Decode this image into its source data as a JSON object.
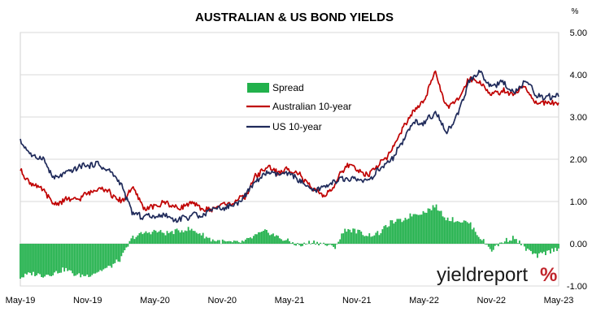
{
  "chart_data": {
    "type": "line",
    "title": "AUSTRALIAN & US BOND YIELDS",
    "y_unit": "%",
    "ylim": [
      -1.0,
      5.0
    ],
    "y_ticks": [
      "5.00",
      "4.00",
      "3.00",
      "2.00",
      "1.00",
      "0.00",
      "-1.00"
    ],
    "y_tick_values": [
      5,
      4,
      3,
      2,
      1,
      0,
      -1
    ],
    "x_ticks": [
      "May-19",
      "Nov-19",
      "May-20",
      "Nov-20",
      "May-21",
      "Nov-21",
      "May-22",
      "Nov-22",
      "May-23"
    ],
    "x_range": [
      "May-19",
      "May-23"
    ],
    "grid": "horizontal",
    "legend_position": "center-left",
    "legend": [
      {
        "key": "spread",
        "label": "Spread"
      },
      {
        "key": "au",
        "label": "Australian 10-year"
      },
      {
        "key": "us",
        "label": "US 10-year"
      }
    ],
    "series": [
      {
        "name": "Spread",
        "kind": "column",
        "color": "#22b14c",
        "points": [
          [
            "May-19",
            -0.8
          ],
          [
            "Jun-19",
            -0.7
          ],
          [
            "Jul-19",
            -0.75
          ],
          [
            "Aug-19",
            -0.7
          ],
          [
            "Sep-19",
            -0.6
          ],
          [
            "Oct-19",
            -0.75
          ],
          [
            "Nov-19",
            -0.75
          ],
          [
            "Dec-19",
            -0.65
          ],
          [
            "Jan-20",
            -0.55
          ],
          [
            "Feb-20",
            -0.35
          ],
          [
            "Mar-20",
            0.15
          ],
          [
            "Apr-20",
            0.25
          ],
          [
            "May-20",
            0.3
          ],
          [
            "Jun-20",
            0.25
          ],
          [
            "Jul-20",
            0.3
          ],
          [
            "Aug-20",
            0.35
          ],
          [
            "Sep-20",
            0.25
          ],
          [
            "Oct-20",
            0.1
          ],
          [
            "Nov-20",
            0.05
          ],
          [
            "Dec-20",
            0.02
          ],
          [
            "Jan-21",
            0.05
          ],
          [
            "Feb-21",
            0.2
          ],
          [
            "Mar-21",
            0.3
          ],
          [
            "Apr-21",
            0.15
          ],
          [
            "May-21",
            0.05
          ],
          [
            "Jun-21",
            -0.05
          ],
          [
            "Jul-21",
            0.05
          ],
          [
            "Aug-21",
            0.0
          ],
          [
            "Sep-21",
            -0.1
          ],
          [
            "Oct-21",
            0.35
          ],
          [
            "Nov-21",
            0.3
          ],
          [
            "Dec-21",
            0.2
          ],
          [
            "Jan-22",
            0.25
          ],
          [
            "Feb-22",
            0.5
          ],
          [
            "Mar-22",
            0.55
          ],
          [
            "Apr-22",
            0.7
          ],
          [
            "May-22",
            0.75
          ],
          [
            "Jun-22",
            0.9
          ],
          [
            "Jul-22",
            0.6
          ],
          [
            "Aug-22",
            0.55
          ],
          [
            "Sep-22",
            0.5
          ],
          [
            "Oct-22",
            0.15
          ],
          [
            "Nov-22",
            -0.15
          ],
          [
            "Dec-22",
            0.05
          ],
          [
            "Jan-23",
            0.15
          ],
          [
            "Feb-23",
            -0.1
          ],
          [
            "Mar-23",
            -0.3
          ],
          [
            "Apr-23",
            -0.2
          ],
          [
            "May-23",
            -0.1
          ]
        ]
      },
      {
        "name": "Australian 10-year",
        "kind": "line",
        "color": "#c00000",
        "points": [
          [
            "May-19",
            1.75
          ],
          [
            "Jun-19",
            1.4
          ],
          [
            "Jul-19",
            1.3
          ],
          [
            "Aug-19",
            0.95
          ],
          [
            "Sep-19",
            1.05
          ],
          [
            "Oct-19",
            1.05
          ],
          [
            "Nov-19",
            1.2
          ],
          [
            "Dec-19",
            1.35
          ],
          [
            "Jan-20",
            1.2
          ],
          [
            "Feb-20",
            1.0
          ],
          [
            "Mar-20",
            1.3
          ],
          [
            "Apr-20",
            0.85
          ],
          [
            "May-20",
            0.9
          ],
          [
            "Jun-20",
            0.95
          ],
          [
            "Jul-20",
            0.85
          ],
          [
            "Aug-20",
            0.95
          ],
          [
            "Sep-20",
            0.85
          ],
          [
            "Oct-20",
            0.8
          ],
          [
            "Nov-20",
            0.9
          ],
          [
            "Dec-20",
            1.0
          ],
          [
            "Jan-21",
            1.1
          ],
          [
            "Feb-21",
            1.6
          ],
          [
            "Mar-21",
            1.8
          ],
          [
            "Apr-21",
            1.7
          ],
          [
            "May-21",
            1.75
          ],
          [
            "Jun-21",
            1.6
          ],
          [
            "Jul-21",
            1.3
          ],
          [
            "Aug-21",
            1.15
          ],
          [
            "Sep-21",
            1.35
          ],
          [
            "Oct-21",
            1.85
          ],
          [
            "Nov-21",
            1.75
          ],
          [
            "Dec-21",
            1.65
          ],
          [
            "Jan-22",
            1.9
          ],
          [
            "Feb-22",
            2.15
          ],
          [
            "Mar-22",
            2.65
          ],
          [
            "Apr-22",
            3.1
          ],
          [
            "May-22",
            3.35
          ],
          [
            "Jun-22",
            4.1
          ],
          [
            "Jul-22",
            3.25
          ],
          [
            "Aug-22",
            3.4
          ],
          [
            "Sep-22",
            3.9
          ],
          [
            "Oct-22",
            3.85
          ],
          [
            "Nov-22",
            3.5
          ],
          [
            "Dec-22",
            3.6
          ],
          [
            "Jan-23",
            3.55
          ],
          [
            "Feb-23",
            3.75
          ],
          [
            "Mar-23",
            3.3
          ],
          [
            "Apr-23",
            3.35
          ],
          [
            "May-23",
            3.35
          ]
        ]
      },
      {
        "name": "US 10-year",
        "kind": "line",
        "color": "#1f2a5a",
        "points": [
          [
            "May-19",
            2.45
          ],
          [
            "Jun-19",
            2.05
          ],
          [
            "Jul-19",
            2.05
          ],
          [
            "Aug-19",
            1.55
          ],
          [
            "Sep-19",
            1.7
          ],
          [
            "Oct-19",
            1.8
          ],
          [
            "Nov-19",
            1.85
          ],
          [
            "Dec-19",
            1.9
          ],
          [
            "Jan-20",
            1.7
          ],
          [
            "Feb-20",
            1.4
          ],
          [
            "Mar-20",
            0.75
          ],
          [
            "Apr-20",
            0.65
          ],
          [
            "May-20",
            0.65
          ],
          [
            "Jun-20",
            0.7
          ],
          [
            "Jul-20",
            0.58
          ],
          [
            "Aug-20",
            0.65
          ],
          [
            "Sep-20",
            0.68
          ],
          [
            "Oct-20",
            0.8
          ],
          [
            "Nov-20",
            0.85
          ],
          [
            "Dec-20",
            0.93
          ],
          [
            "Jan-21",
            1.1
          ],
          [
            "Feb-21",
            1.45
          ],
          [
            "Mar-21",
            1.7
          ],
          [
            "Apr-21",
            1.65
          ],
          [
            "May-21",
            1.62
          ],
          [
            "Jun-21",
            1.5
          ],
          [
            "Jul-21",
            1.25
          ],
          [
            "Aug-21",
            1.3
          ],
          [
            "Sep-21",
            1.45
          ],
          [
            "Oct-21",
            1.55
          ],
          [
            "Nov-21",
            1.55
          ],
          [
            "Dec-21",
            1.5
          ],
          [
            "Jan-22",
            1.75
          ],
          [
            "Feb-22",
            1.95
          ],
          [
            "Mar-22",
            2.35
          ],
          [
            "Apr-22",
            2.9
          ],
          [
            "May-22",
            2.85
          ],
          [
            "Jun-22",
            3.1
          ],
          [
            "Jul-22",
            2.65
          ],
          [
            "Aug-22",
            3.05
          ],
          [
            "Sep-22",
            3.8
          ],
          [
            "Oct-22",
            4.05
          ],
          [
            "Nov-22",
            3.7
          ],
          [
            "Dec-22",
            3.85
          ],
          [
            "Jan-23",
            3.55
          ],
          [
            "Feb-23",
            3.9
          ],
          [
            "Mar-23",
            3.5
          ],
          [
            "Apr-23",
            3.45
          ],
          [
            "May-23",
            3.5
          ]
        ]
      }
    ]
  },
  "branding": {
    "logo_part1": "yieldreport",
    "logo_part2": "%"
  }
}
